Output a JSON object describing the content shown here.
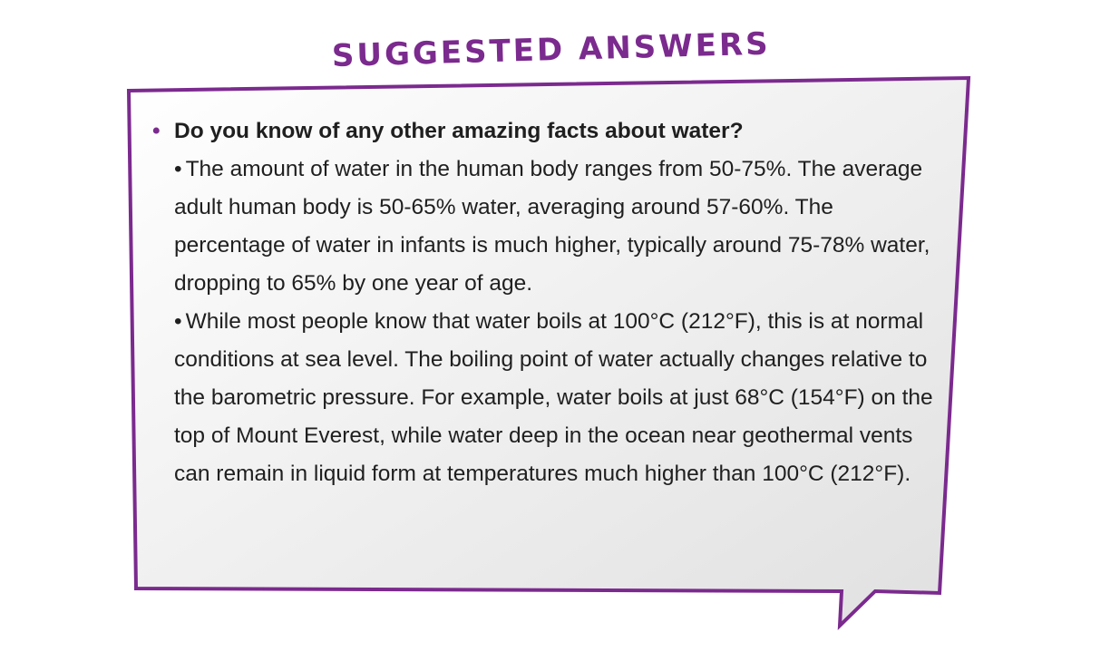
{
  "heading": "SUGGESTED ANSWERS",
  "colors": {
    "accent": "#7b2a8e",
    "bubble_fill_light": "#ffffff",
    "bubble_fill_dark": "#e3e3e3",
    "text": "#1f1f1f"
  },
  "question": "Do you know of any other amazing facts about water?",
  "answers": [
    "The amount of water in the human body ranges from 50-75%. The average adult human body is 50-65% water, averaging around 57-60%. The percentage of water in infants is much higher, typically around 75-78% water, dropping to 65% by one year of age.",
    "While most people know that water boils at 100°C (212°F), this is at normal conditions at sea level. The boiling point of water actually changes relative to the barometric pressure. For example, water boils at just 68°C (154°F) on the top of Mount Everest, while water deep in the ocean near geothermal vents can remain in liquid form at temperatures much higher than 100°C (212°F)."
  ]
}
